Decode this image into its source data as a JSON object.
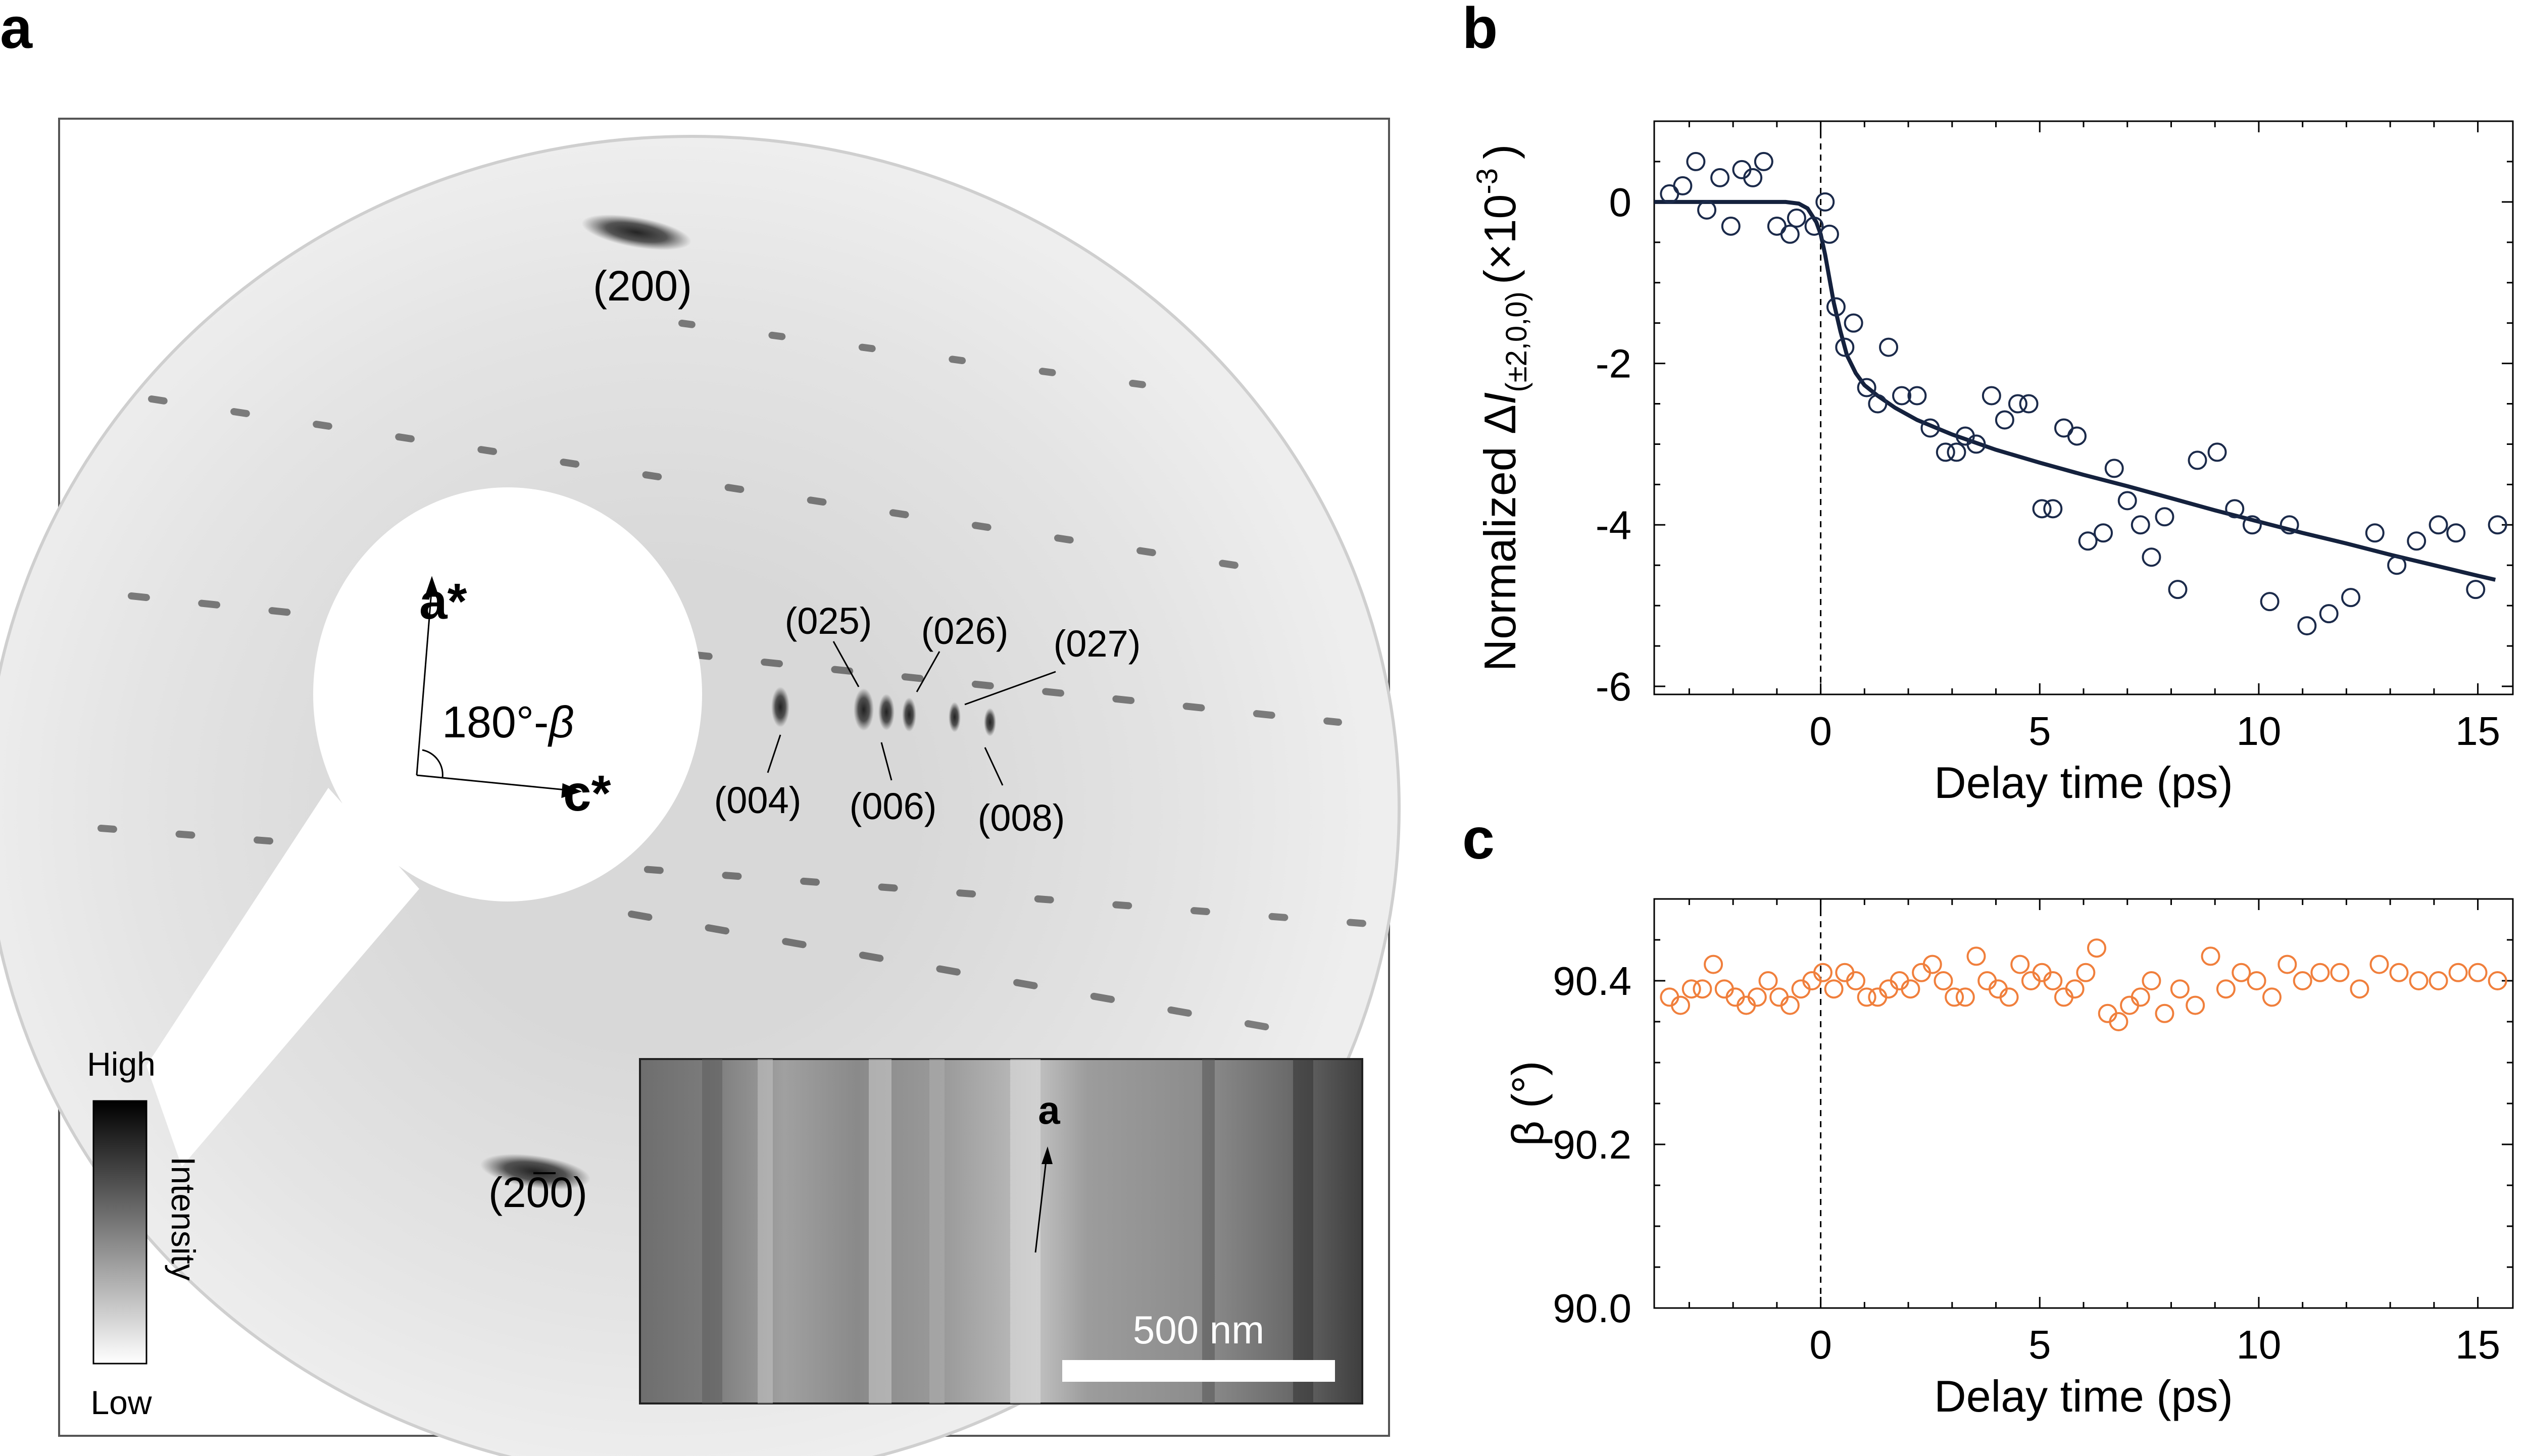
{
  "panels": {
    "a": {
      "letter": "a",
      "peaks": {
        "p200_top": "(200)",
        "p200_bottom": "(200)",
        "p025": "(025)",
        "p026": "(026)",
        "p027": "(027)",
        "p004": "(004)",
        "p006": "(006)",
        "p008": "(008)"
      },
      "axes": {
        "a_star": "a*",
        "c_star": "c*",
        "angle": "180°-",
        "angle_symbol": "β"
      },
      "colorbar": {
        "high": "High",
        "low": "Low",
        "label": "Intensity"
      },
      "inset": {
        "axis_label": "a",
        "scalebar": "500 nm"
      }
    },
    "b": {
      "letter": "b"
    },
    "c": {
      "letter": "c"
    }
  },
  "chart_data": [
    {
      "panel": "b",
      "type": "scatter",
      "xlabel": "Delay time (ps)",
      "ylabel": "Normalized ΔI(±2,0,0) (×10⁻³)",
      "ylabel_parts": {
        "prefix": "Normalized Δ",
        "italic": "I",
        "subscript": "(±2,0,0)",
        "suffix": "(×10",
        "exponent": "-3",
        "close": ")"
      },
      "xlim": [
        -3.8,
        15.8
      ],
      "ylim": [
        -6.1,
        1.0
      ],
      "xticks": [
        0,
        5,
        10,
        15
      ],
      "yticks": [
        0,
        -2,
        -4,
        -6
      ],
      "vline_x": 0,
      "marker_color": "#1b2a4a",
      "fit_color": "#14213d",
      "series": [
        {
          "marker": "open-circle",
          "x": [
            -3.45,
            -3.15,
            -2.85,
            -2.6,
            -2.3,
            -2.05,
            -1.8,
            -1.55,
            -1.3,
            -1.0,
            -0.7,
            -0.55,
            -0.15,
            0.1,
            0.2,
            0.35,
            0.55,
            0.75,
            1.05,
            1.3,
            1.55,
            1.85,
            2.2,
            2.5,
            2.85,
            3.1,
            3.3,
            3.55,
            3.9,
            4.2,
            4.5,
            4.75,
            5.05,
            5.3,
            5.55,
            5.85,
            6.1,
            6.45,
            6.7,
            7.0,
            7.3,
            7.55,
            7.85,
            8.15,
            8.6,
            9.05,
            9.45,
            9.85,
            10.25,
            10.7,
            11.1,
            11.6,
            12.1,
            12.65,
            13.15,
            13.6,
            14.1,
            14.5,
            14.95,
            15.45
          ],
          "y": [
            0.1,
            0.2,
            0.5,
            -0.1,
            0.3,
            -0.3,
            0.4,
            0.3,
            0.5,
            -0.3,
            -0.4,
            -0.2,
            -0.3,
            0.0,
            -0.4,
            -1.3,
            -1.8,
            -1.5,
            -2.3,
            -2.5,
            -1.8,
            -2.4,
            -2.4,
            -2.8,
            -3.1,
            -3.1,
            -2.9,
            -3.0,
            -2.4,
            -2.7,
            -2.5,
            -2.5,
            -3.8,
            -3.8,
            -2.8,
            -2.9,
            -4.2,
            -4.1,
            -3.3,
            -3.7,
            -4.0,
            -4.4,
            -3.9,
            -4.8,
            -3.2,
            -3.1,
            -3.8,
            -4.0,
            -4.95,
            -4.0,
            -5.25,
            -5.1,
            -4.9,
            -4.1,
            -4.5,
            -4.2,
            -4.0,
            -4.1,
            -4.8,
            -4.0
          ]
        }
      ],
      "fit": {
        "x": [
          -3.8,
          -1.5,
          -0.8,
          -0.5,
          -0.3,
          -0.1,
          0.0,
          0.1,
          0.2,
          0.3,
          0.45,
          0.6,
          0.8,
          1.0,
          1.3,
          1.7,
          2.2,
          3.0,
          4.0,
          5.0,
          6.0,
          7.0,
          8.0,
          9.0,
          10.0,
          11.0,
          12.0,
          13.0,
          14.0,
          15.0,
          15.4
        ],
        "y": [
          0.0,
          0.0,
          0.0,
          -0.02,
          -0.08,
          -0.25,
          -0.4,
          -0.65,
          -0.95,
          -1.25,
          -1.6,
          -1.9,
          -2.12,
          -2.27,
          -2.4,
          -2.55,
          -2.7,
          -2.88,
          -3.07,
          -3.23,
          -3.38,
          -3.52,
          -3.67,
          -3.82,
          -3.96,
          -4.1,
          -4.23,
          -4.37,
          -4.5,
          -4.63,
          -4.68
        ]
      }
    },
    {
      "panel": "c",
      "type": "scatter",
      "xlabel": "Delay time (ps)",
      "ylabel": "β (°)",
      "xlim": [
        -3.8,
        15.8
      ],
      "ylim": [
        90.0,
        90.5
      ],
      "xticks": [
        0,
        5,
        10,
        15
      ],
      "yticks": [
        90.0,
        90.2,
        90.4
      ],
      "ytick_labels": [
        "90.0",
        "90.2",
        "90.4"
      ],
      "vline_x": 0,
      "marker_color": "#f07f3c",
      "series": [
        {
          "marker": "open-circle",
          "x": [
            -3.45,
            -3.2,
            -2.95,
            -2.7,
            -2.45,
            -2.2,
            -1.95,
            -1.7,
            -1.45,
            -1.2,
            -0.95,
            -0.7,
            -0.45,
            -0.2,
            0.05,
            0.3,
            0.55,
            0.8,
            1.05,
            1.3,
            1.55,
            1.8,
            2.05,
            2.3,
            2.55,
            2.8,
            3.05,
            3.3,
            3.55,
            3.8,
            4.05,
            4.3,
            4.55,
            4.8,
            5.05,
            5.3,
            5.55,
            5.8,
            6.05,
            6.3,
            6.55,
            6.8,
            7.05,
            7.3,
            7.55,
            7.85,
            8.2,
            8.55,
            8.9,
            9.25,
            9.6,
            9.95,
            10.3,
            10.65,
            11.0,
            11.4,
            11.85,
            12.3,
            12.75,
            13.2,
            13.65,
            14.1,
            14.55,
            15.0,
            15.45
          ],
          "y": [
            90.38,
            90.37,
            90.39,
            90.39,
            90.42,
            90.39,
            90.38,
            90.37,
            90.38,
            90.4,
            90.38,
            90.37,
            90.39,
            90.4,
            90.41,
            90.39,
            90.41,
            90.4,
            90.38,
            90.38,
            90.39,
            90.4,
            90.39,
            90.41,
            90.42,
            90.4,
            90.38,
            90.38,
            90.43,
            90.4,
            90.39,
            90.38,
            90.42,
            90.4,
            90.41,
            90.4,
            90.38,
            90.39,
            90.41,
            90.44,
            90.36,
            90.35,
            90.37,
            90.38,
            90.4,
            90.36,
            90.39,
            90.37,
            90.43,
            90.39,
            90.41,
            90.4,
            90.38,
            90.42,
            90.4,
            90.41,
            90.41,
            90.39,
            90.42,
            90.41,
            90.4,
            90.4,
            90.41,
            90.41,
            90.4
          ]
        }
      ]
    }
  ]
}
